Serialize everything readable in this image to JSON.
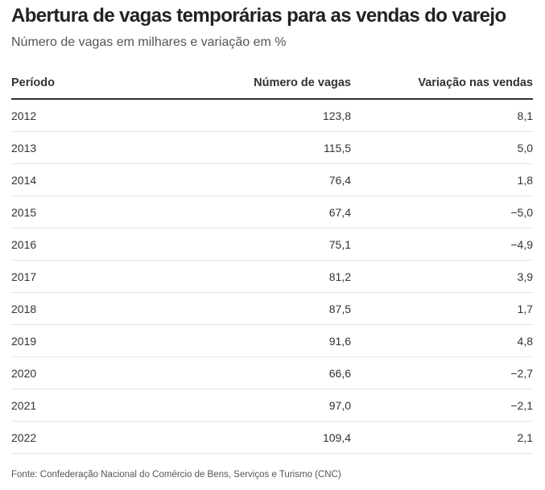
{
  "header": {
    "title": "Abertura de vagas temporárias para as vendas do varejo",
    "subtitle": "Número de vagas em milhares e variação em %"
  },
  "chart_data": {
    "type": "table",
    "title": "Abertura de vagas temporárias para as vendas do varejo",
    "subtitle": "Número de vagas em milhares e variação em %",
    "columns": [
      "Período",
      "Número de vagas",
      "Variação nas vendas"
    ],
    "rows": [
      [
        "2012",
        "123,8",
        "8,1"
      ],
      [
        "2013",
        "115,5",
        "5,0"
      ],
      [
        "2014",
        "76,4",
        "1,8"
      ],
      [
        "2015",
        "67,4",
        "−5,0"
      ],
      [
        "2016",
        "75,1",
        "−4,9"
      ],
      [
        "2017",
        "81,2",
        "3,9"
      ],
      [
        "2018",
        "87,5",
        "1,7"
      ],
      [
        "2019",
        "91,6",
        "4,8"
      ],
      [
        "2020",
        "66,6",
        "−2,7"
      ],
      [
        "2021",
        "97,0",
        "−2,1"
      ],
      [
        "2022",
        "109,4",
        "2,1"
      ]
    ]
  },
  "footer": {
    "source": "Fonte: Confederação Nacional do Comércio de Bens, Serviços e Turismo (CNC)"
  }
}
